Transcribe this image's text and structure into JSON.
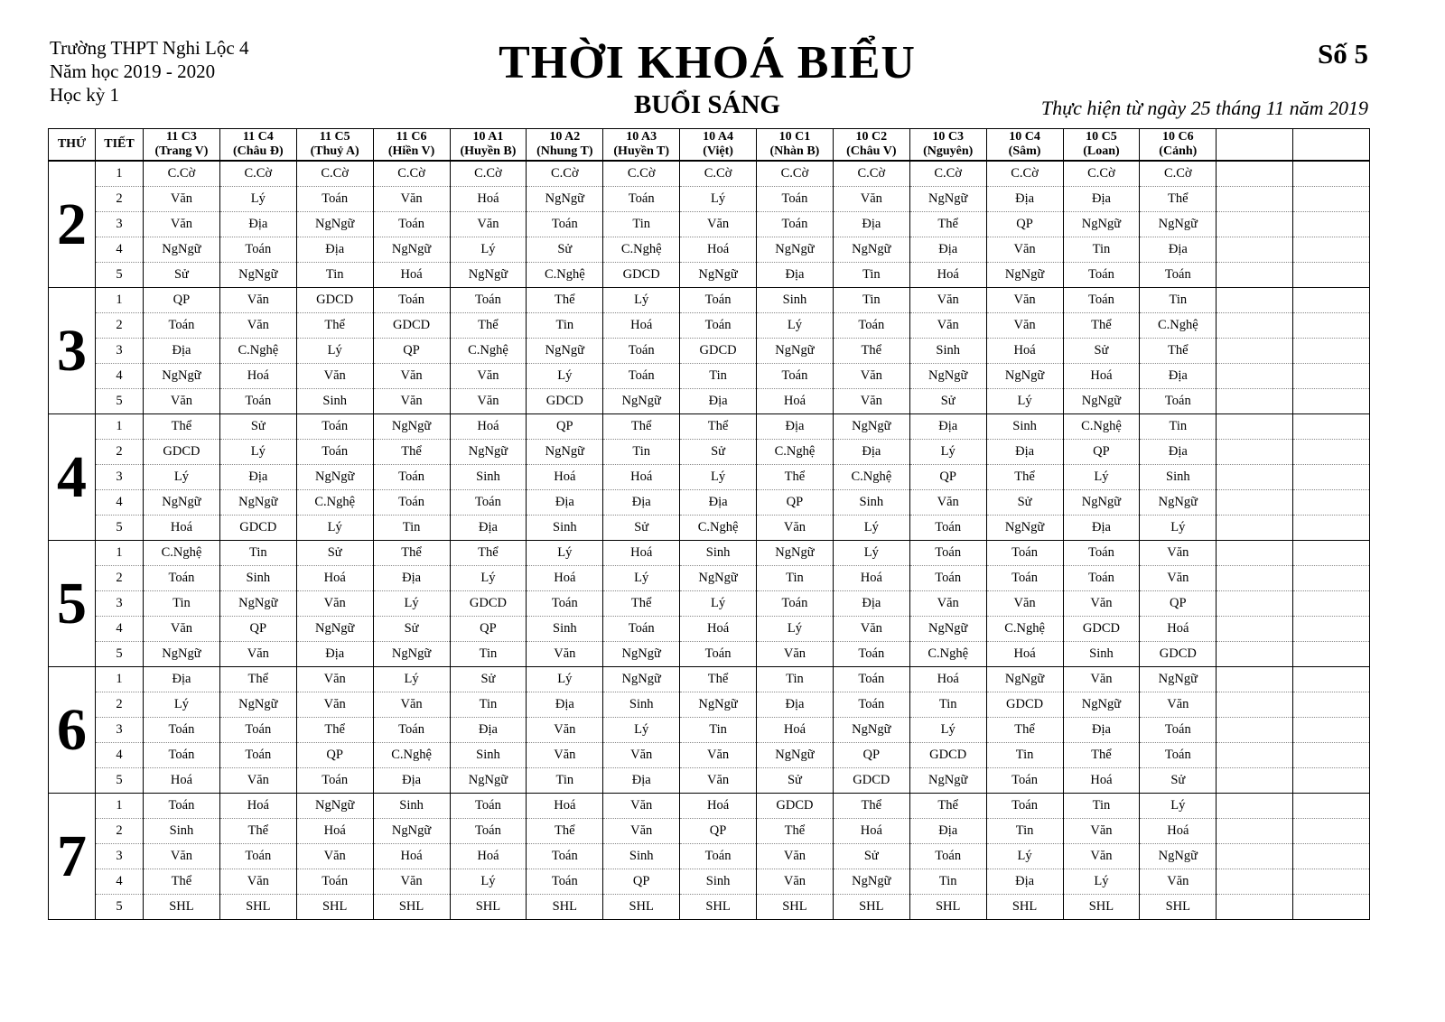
{
  "header": {
    "school": "Trường THPT Nghi Lộc 4",
    "school_year": "Năm học 2019 - 2020",
    "semester": "Học kỳ 1",
    "title": "THỜI KHOÁ BIỂU",
    "subtitle": "BUỔI SÁNG",
    "number": "Số 5",
    "effective": "Thực hiện từ ngày 25 tháng 11 năm 2019"
  },
  "table": {
    "col_day": "THỨ",
    "col_period": "TIẾT",
    "classes": [
      {
        "name": "11 C3",
        "teacher": "(Trang V)"
      },
      {
        "name": "11 C4",
        "teacher": "(Châu Đ)"
      },
      {
        "name": "11 C5",
        "teacher": "(Thuỷ A)"
      },
      {
        "name": "11 C6",
        "teacher": "(Hiền V)"
      },
      {
        "name": "10 A1",
        "teacher": "(Huyền B)"
      },
      {
        "name": "10 A2",
        "teacher": "(Nhung T)"
      },
      {
        "name": "10 A3",
        "teacher": "(Huyền T)"
      },
      {
        "name": "10 A4",
        "teacher": "(Việt)"
      },
      {
        "name": "10 C1",
        "teacher": "(Nhàn B)"
      },
      {
        "name": "10 C2",
        "teacher": "(Châu V)"
      },
      {
        "name": "10 C3",
        "teacher": "(Nguyên)"
      },
      {
        "name": "10 C4",
        "teacher": "(Sâm)"
      },
      {
        "name": "10 C5",
        "teacher": "(Loan)"
      },
      {
        "name": "10 C6",
        "teacher": "(Cảnh)"
      }
    ],
    "empty_columns": 2,
    "days": [
      {
        "day": "2",
        "periods": [
          {
            "period": "1",
            "subjects": [
              "C.Cờ",
              "C.Cờ",
              "C.Cờ",
              "C.Cờ",
              "C.Cờ",
              "C.Cờ",
              "C.Cờ",
              "C.Cờ",
              "C.Cờ",
              "C.Cờ",
              "C.Cờ",
              "C.Cờ",
              "C.Cờ",
              "C.Cờ"
            ]
          },
          {
            "period": "2",
            "subjects": [
              "Văn",
              "Lý",
              "Toán",
              "Văn",
              "Hoá",
              "NgNgữ",
              "Toán",
              "Lý",
              "Toán",
              "Văn",
              "NgNgữ",
              "Địa",
              "Địa",
              "Thể"
            ]
          },
          {
            "period": "3",
            "subjects": [
              "Văn",
              "Địa",
              "NgNgữ",
              "Toán",
              "Văn",
              "Toán",
              "Tin",
              "Văn",
              "Toán",
              "Địa",
              "Thể",
              "QP",
              "NgNgữ",
              "NgNgữ"
            ]
          },
          {
            "period": "4",
            "subjects": [
              "NgNgữ",
              "Toán",
              "Địa",
              "NgNgữ",
              "Lý",
              "Sử",
              "C.Nghệ",
              "Hoá",
              "NgNgữ",
              "NgNgữ",
              "Địa",
              "Văn",
              "Tin",
              "Địa"
            ]
          },
          {
            "period": "5",
            "subjects": [
              "Sử",
              "NgNgữ",
              "Tin",
              "Hoá",
              "NgNgữ",
              "C.Nghệ",
              "GDCD",
              "NgNgữ",
              "Địa",
              "Tin",
              "Hoá",
              "NgNgữ",
              "Toán",
              "Toán"
            ]
          }
        ]
      },
      {
        "day": "3",
        "periods": [
          {
            "period": "1",
            "subjects": [
              "QP",
              "Văn",
              "GDCD",
              "Toán",
              "Toán",
              "Thể",
              "Lý",
              "Toán",
              "Sinh",
              "Tin",
              "Văn",
              "Văn",
              "Toán",
              "Tin"
            ]
          },
          {
            "period": "2",
            "subjects": [
              "Toán",
              "Văn",
              "Thể",
              "GDCD",
              "Thể",
              "Tin",
              "Hoá",
              "Toán",
              "Lý",
              "Toán",
              "Văn",
              "Văn",
              "Thể",
              "C.Nghệ"
            ]
          },
          {
            "period": "3",
            "subjects": [
              "Địa",
              "C.Nghệ",
              "Lý",
              "QP",
              "C.Nghệ",
              "NgNgữ",
              "Toán",
              "GDCD",
              "NgNgữ",
              "Thể",
              "Sinh",
              "Hoá",
              "Sử",
              "Thể"
            ]
          },
          {
            "period": "4",
            "subjects": [
              "NgNgữ",
              "Hoá",
              "Văn",
              "Văn",
              "Văn",
              "Lý",
              "Toán",
              "Tin",
              "Toán",
              "Văn",
              "NgNgữ",
              "NgNgữ",
              "Hoá",
              "Địa"
            ]
          },
          {
            "period": "5",
            "subjects": [
              "Văn",
              "Toán",
              "Sinh",
              "Văn",
              "Văn",
              "GDCD",
              "NgNgữ",
              "Địa",
              "Hoá",
              "Văn",
              "Sử",
              "Lý",
              "NgNgữ",
              "Toán"
            ]
          }
        ]
      },
      {
        "day": "4",
        "periods": [
          {
            "period": "1",
            "subjects": [
              "Thể",
              "Sử",
              "Toán",
              "NgNgữ",
              "Hoá",
              "QP",
              "Thể",
              "Thể",
              "Địa",
              "NgNgữ",
              "Địa",
              "Sinh",
              "C.Nghệ",
              "Tin"
            ]
          },
          {
            "period": "2",
            "subjects": [
              "GDCD",
              "Lý",
              "Toán",
              "Thể",
              "NgNgữ",
              "NgNgữ",
              "Tin",
              "Sử",
              "C.Nghệ",
              "Địa",
              "Lý",
              "Địa",
              "QP",
              "Địa"
            ]
          },
          {
            "period": "3",
            "subjects": [
              "Lý",
              "Địa",
              "NgNgữ",
              "Toán",
              "Sinh",
              "Hoá",
              "Hoá",
              "Lý",
              "Thể",
              "C.Nghệ",
              "QP",
              "Thể",
              "Lý",
              "Sinh"
            ]
          },
          {
            "period": "4",
            "subjects": [
              "NgNgữ",
              "NgNgữ",
              "C.Nghệ",
              "Toán",
              "Toán",
              "Địa",
              "Địa",
              "Địa",
              "QP",
              "Sinh",
              "Văn",
              "Sử",
              "NgNgữ",
              "NgNgữ"
            ]
          },
          {
            "period": "5",
            "subjects": [
              "Hoá",
              "GDCD",
              "Lý",
              "Tin",
              "Địa",
              "Sinh",
              "Sử",
              "C.Nghệ",
              "Văn",
              "Lý",
              "Toán",
              "NgNgữ",
              "Địa",
              "Lý"
            ]
          }
        ]
      },
      {
        "day": "5",
        "periods": [
          {
            "period": "1",
            "subjects": [
              "C.Nghệ",
              "Tin",
              "Sử",
              "Thể",
              "Thể",
              "Lý",
              "Hoá",
              "Sinh",
              "NgNgữ",
              "Lý",
              "Toán",
              "Toán",
              "Toán",
              "Văn"
            ]
          },
          {
            "period": "2",
            "subjects": [
              "Toán",
              "Sinh",
              "Hoá",
              "Địa",
              "Lý",
              "Hoá",
              "Lý",
              "NgNgữ",
              "Tin",
              "Hoá",
              "Toán",
              "Toán",
              "Toán",
              "Văn"
            ]
          },
          {
            "period": "3",
            "subjects": [
              "Tin",
              "NgNgữ",
              "Văn",
              "Lý",
              "GDCD",
              "Toán",
              "Thể",
              "Lý",
              "Toán",
              "Địa",
              "Văn",
              "Văn",
              "Văn",
              "QP"
            ]
          },
          {
            "period": "4",
            "subjects": [
              "Văn",
              "QP",
              "NgNgữ",
              "Sử",
              "QP",
              "Sinh",
              "Toán",
              "Hoá",
              "Lý",
              "Văn",
              "NgNgữ",
              "C.Nghệ",
              "GDCD",
              "Hoá"
            ]
          },
          {
            "period": "5",
            "subjects": [
              "NgNgữ",
              "Văn",
              "Địa",
              "NgNgữ",
              "Tin",
              "Văn",
              "NgNgữ",
              "Toán",
              "Văn",
              "Toán",
              "C.Nghệ",
              "Hoá",
              "Sinh",
              "GDCD"
            ]
          }
        ]
      },
      {
        "day": "6",
        "periods": [
          {
            "period": "1",
            "subjects": [
              "Địa",
              "Thể",
              "Văn",
              "Lý",
              "Sử",
              "Lý",
              "NgNgữ",
              "Thể",
              "Tin",
              "Toán",
              "Hoá",
              "NgNgữ",
              "Văn",
              "NgNgữ"
            ]
          },
          {
            "period": "2",
            "subjects": [
              "Lý",
              "NgNgữ",
              "Văn",
              "Văn",
              "Tin",
              "Địa",
              "Sinh",
              "NgNgữ",
              "Địa",
              "Toán",
              "Tin",
              "GDCD",
              "NgNgữ",
              "Văn"
            ]
          },
          {
            "period": "3",
            "subjects": [
              "Toán",
              "Toán",
              "Thể",
              "Toán",
              "Địa",
              "Văn",
              "Lý",
              "Tin",
              "Hoá",
              "NgNgữ",
              "Lý",
              "Thể",
              "Địa",
              "Toán"
            ]
          },
          {
            "period": "4",
            "subjects": [
              "Toán",
              "Toán",
              "QP",
              "C.Nghệ",
              "Sinh",
              "Văn",
              "Văn",
              "Văn",
              "NgNgữ",
              "QP",
              "GDCD",
              "Tin",
              "Thể",
              "Toán"
            ]
          },
          {
            "period": "5",
            "subjects": [
              "Hoá",
              "Văn",
              "Toán",
              "Địa",
              "NgNgữ",
              "Tin",
              "Địa",
              "Văn",
              "Sử",
              "GDCD",
              "NgNgữ",
              "Toán",
              "Hoá",
              "Sử"
            ]
          }
        ]
      },
      {
        "day": "7",
        "periods": [
          {
            "period": "1",
            "subjects": [
              "Toán",
              "Hoá",
              "NgNgữ",
              "Sinh",
              "Toán",
              "Hoá",
              "Văn",
              "Hoá",
              "GDCD",
              "Thể",
              "Thể",
              "Toán",
              "Tin",
              "Lý"
            ]
          },
          {
            "period": "2",
            "subjects": [
              "Sinh",
              "Thể",
              "Hoá",
              "NgNgữ",
              "Toán",
              "Thể",
              "Văn",
              "QP",
              "Thể",
              "Hoá",
              "Địa",
              "Tin",
              "Văn",
              "Hoá"
            ]
          },
          {
            "period": "3",
            "subjects": [
              "Văn",
              "Toán",
              "Văn",
              "Hoá",
              "Hoá",
              "Toán",
              "Sinh",
              "Toán",
              "Văn",
              "Sử",
              "Toán",
              "Lý",
              "Văn",
              "NgNgữ"
            ]
          },
          {
            "period": "4",
            "subjects": [
              "Thể",
              "Văn",
              "Toán",
              "Văn",
              "Lý",
              "Toán",
              "QP",
              "Sinh",
              "Văn",
              "NgNgữ",
              "Tin",
              "Địa",
              "Lý",
              "Văn"
            ]
          },
          {
            "period": "5",
            "subjects": [
              "SHL",
              "SHL",
              "SHL",
              "SHL",
              "SHL",
              "SHL",
              "SHL",
              "SHL",
              "SHL",
              "SHL",
              "SHL",
              "SHL",
              "SHL",
              "SHL"
            ]
          }
        ]
      }
    ]
  }
}
